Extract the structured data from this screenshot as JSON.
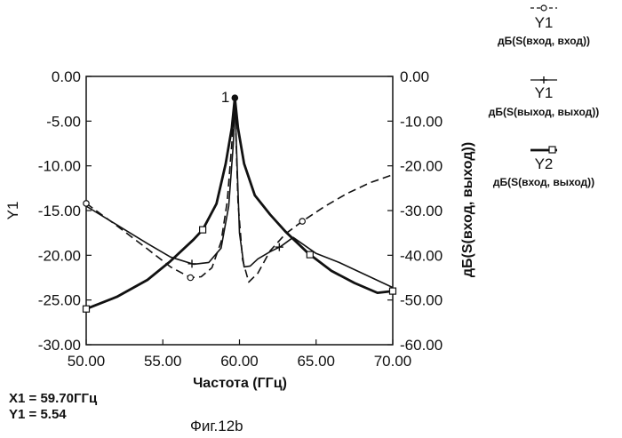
{
  "chart_data": {
    "type": "line",
    "xlabel": "Частота (ГГц)",
    "ylabel_left": "Y1",
    "ylabel_right": "дБ(S(вход, выход))",
    "xlim": [
      50,
      70
    ],
    "ylim_left": [
      -30,
      0
    ],
    "ylim_right": [
      -60,
      0
    ],
    "x_ticks": [
      "50.00",
      "55.00",
      "60.00",
      "65.00",
      "70.00"
    ],
    "y_left_ticks": [
      "0.00",
      "-5.00",
      "-10.00",
      "-15.00",
      "-20.00",
      "-25.00",
      "-30.00"
    ],
    "y_right_ticks": [
      "0.00",
      "-10.00",
      "-20.00",
      "-30.00",
      "-40.00",
      "-50.00",
      "-60.00"
    ],
    "grid": false,
    "legend_position": "right",
    "series": [
      {
        "id": "s11",
        "legend_name": "Y1",
        "legend_desc": "дБ(S(вход, вход))",
        "axis": "left",
        "style": "dashed",
        "marker": "circle",
        "x": [
          50,
          52,
          54,
          55.5,
          56.8,
          57.5,
          58.2,
          58.8,
          59.2,
          59.5,
          59.7,
          59.9,
          60.2,
          60.6,
          61.2,
          62,
          63,
          64.1,
          65.5,
          67,
          68.5,
          70
        ],
        "y": [
          -14.2,
          -16.7,
          -19.3,
          -21.3,
          -22.5,
          -22.4,
          -21.4,
          -18.5,
          -14,
          -7.5,
          -2.4,
          -14,
          -20.5,
          -23,
          -22,
          -19.5,
          -17.6,
          -16.2,
          -14.6,
          -13.1,
          -11.9,
          -11.0
        ]
      },
      {
        "id": "s22",
        "legend_name": "Y1",
        "legend_desc": "дБ(S(выход, выход))",
        "axis": "left",
        "style": "solid-thin",
        "marker": "plus",
        "x": [
          50,
          52,
          54,
          55.5,
          57,
          58,
          58.8,
          59.3,
          59.6,
          59.7,
          59.8,
          60.0,
          60.3,
          60.7,
          61.2,
          62,
          62.7,
          63.5,
          65,
          66.5,
          68,
          70
        ],
        "y": [
          -14.5,
          -16.6,
          -18.7,
          -20.2,
          -21.0,
          -20.8,
          -19.2,
          -14.5,
          -7.5,
          -2.4,
          -7.5,
          -17.5,
          -21.3,
          -21.2,
          -20.4,
          -19.6,
          -19.0,
          -18.0,
          -19.8,
          -20.8,
          -22.0,
          -23.6
        ]
      },
      {
        "id": "s12",
        "legend_name": "Y2",
        "legend_desc": "дБ(S(вход, выход))",
        "axis": "right",
        "style": "solid-thick",
        "marker": "square",
        "x": [
          50,
          52,
          54,
          55.5,
          57,
          57.6,
          58.5,
          59.1,
          59.5,
          59.7,
          59.9,
          60.3,
          61,
          62,
          63,
          64.5,
          66,
          67.5,
          69,
          70
        ],
        "y": [
          -52,
          -49.3,
          -45.5,
          -41.3,
          -36.5,
          -34.3,
          -28.5,
          -19.5,
          -11.5,
          -4.8,
          -11.5,
          -19.5,
          -26.6,
          -30.9,
          -34.7,
          -39.6,
          -43.5,
          -46.2,
          -48.4,
          -48.0
        ]
      }
    ],
    "markers_at_x": {
      "s11": [
        50,
        56.8,
        64.1
      ],
      "s22": [
        56.9,
        62.6
      ],
      "s12": [
        50,
        57.6,
        64.6,
        70
      ]
    },
    "peak_marker": {
      "label": "1",
      "x": 59.7,
      "y": -2.4
    }
  },
  "readout": {
    "x_text": "X1 = 59.70ГГц",
    "y_text": "Y1 = 5.54"
  },
  "caption": "Фиг.12b",
  "colors": {
    "line": "#111111",
    "background": "#ffffff"
  }
}
